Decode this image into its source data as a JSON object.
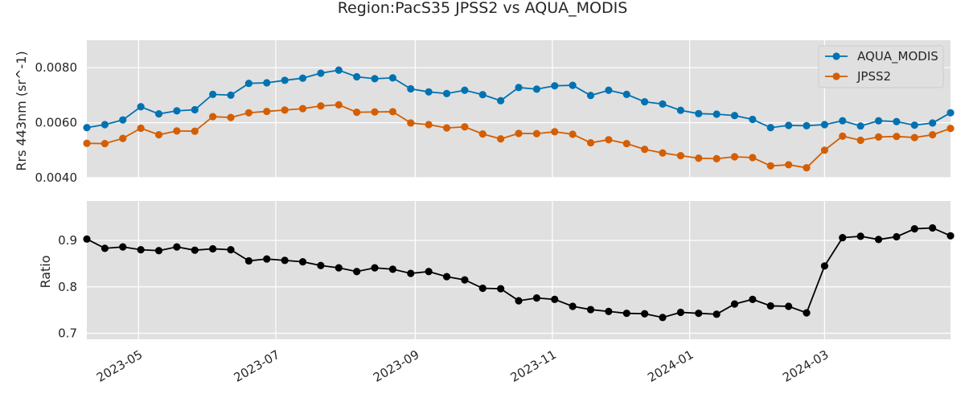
{
  "chart_data": [
    {
      "type": "line",
      "title": "Region:PacS35 JPSS2 vs AQUA_MODIS",
      "xlabel": "",
      "ylabel": "Rrs 443nm (sr^-1)",
      "ylim": [
        0.004,
        0.009
      ],
      "yticks": [
        "0.0040",
        "0.0060",
        "0.0080"
      ],
      "grid": true,
      "legend": "top-right",
      "x": [
        "2023-04-08",
        "2023-04-16",
        "2023-04-24",
        "2023-05-02",
        "2023-05-10",
        "2023-05-18",
        "2023-05-26",
        "2023-06-03",
        "2023-06-11",
        "2023-06-19",
        "2023-06-27",
        "2023-07-05",
        "2023-07-13",
        "2023-07-21",
        "2023-07-29",
        "2023-08-06",
        "2023-08-14",
        "2023-08-22",
        "2023-08-30",
        "2023-09-07",
        "2023-09-15",
        "2023-09-23",
        "2023-10-01",
        "2023-10-09",
        "2023-10-17",
        "2023-10-25",
        "2023-11-02",
        "2023-11-10",
        "2023-11-18",
        "2023-11-26",
        "2023-12-04",
        "2023-12-12",
        "2023-12-20",
        "2023-12-28",
        "2024-01-05",
        "2024-01-13",
        "2024-01-21",
        "2024-01-29",
        "2024-02-06",
        "2024-02-14",
        "2024-02-22",
        "2024-03-01",
        "2024-03-09",
        "2024-03-17",
        "2024-03-25",
        "2024-04-02",
        "2024-04-10",
        "2024-04-18",
        "2024-04-26"
      ],
      "series": [
        {
          "name": "AQUA_MODIS",
          "color": "#0072b2",
          "values": [
            0.00582,
            0.00593,
            0.0061,
            0.00658,
            0.00632,
            0.00643,
            0.00647,
            0.00703,
            0.007,
            0.00743,
            0.00745,
            0.00754,
            0.00762,
            0.0078,
            0.00791,
            0.00767,
            0.0076,
            0.00763,
            0.00723,
            0.00712,
            0.00706,
            0.00718,
            0.00702,
            0.0068,
            0.00728,
            0.00722,
            0.00734,
            0.00736,
            0.00699,
            0.00718,
            0.00703,
            0.00676,
            0.00668,
            0.00645,
            0.00633,
            0.00631,
            0.00626,
            0.00612,
            0.00582,
            0.0059,
            0.00589,
            0.00593,
            0.00607,
            0.00588,
            0.00607,
            0.00604,
            0.00591,
            0.00599,
            0.00636
          ]
        },
        {
          "name": "JPSS2",
          "color": "#d55e00",
          "values": [
            0.00525,
            0.00524,
            0.00543,
            0.0058,
            0.00556,
            0.0057,
            0.00569,
            0.00622,
            0.00619,
            0.00636,
            0.00641,
            0.00646,
            0.00651,
            0.00661,
            0.00665,
            0.00638,
            0.00639,
            0.0064,
            0.00599,
            0.00593,
            0.00581,
            0.00585,
            0.00559,
            0.00541,
            0.00561,
            0.0056,
            0.00567,
            0.00558,
            0.00527,
            0.00538,
            0.00524,
            0.00503,
            0.0049,
            0.0048,
            0.00471,
            0.00469,
            0.00476,
            0.00473,
            0.00443,
            0.00447,
            0.00436,
            0.005,
            0.00551,
            0.00536,
            0.00548,
            0.0055,
            0.00546,
            0.00556,
            0.00579
          ]
        }
      ]
    },
    {
      "type": "line",
      "title": "",
      "xlabel": "",
      "ylabel": "Ratio",
      "ylim": [
        0.687,
        0.985
      ],
      "yticks": [
        "0.7",
        "0.8",
        "0.9"
      ],
      "grid": true,
      "x_tick_labels": [
        "2023-05",
        "2023-07",
        "2023-09",
        "2023-11",
        "2024-01",
        "2024-03"
      ],
      "series": [
        {
          "name": "",
          "color": "#000000",
          "values": [
            0.903,
            0.883,
            0.886,
            0.88,
            0.878,
            0.886,
            0.879,
            0.882,
            0.88,
            0.856,
            0.86,
            0.857,
            0.854,
            0.846,
            0.841,
            0.833,
            0.841,
            0.838,
            0.829,
            0.833,
            0.822,
            0.815,
            0.797,
            0.796,
            0.77,
            0.776,
            0.773,
            0.758,
            0.751,
            0.747,
            0.743,
            0.742,
            0.734,
            0.745,
            0.743,
            0.741,
            0.763,
            0.773,
            0.759,
            0.758,
            0.744,
            0.845,
            0.906,
            0.909,
            0.902,
            0.908,
            0.925,
            0.927,
            0.91
          ]
        }
      ]
    }
  ]
}
